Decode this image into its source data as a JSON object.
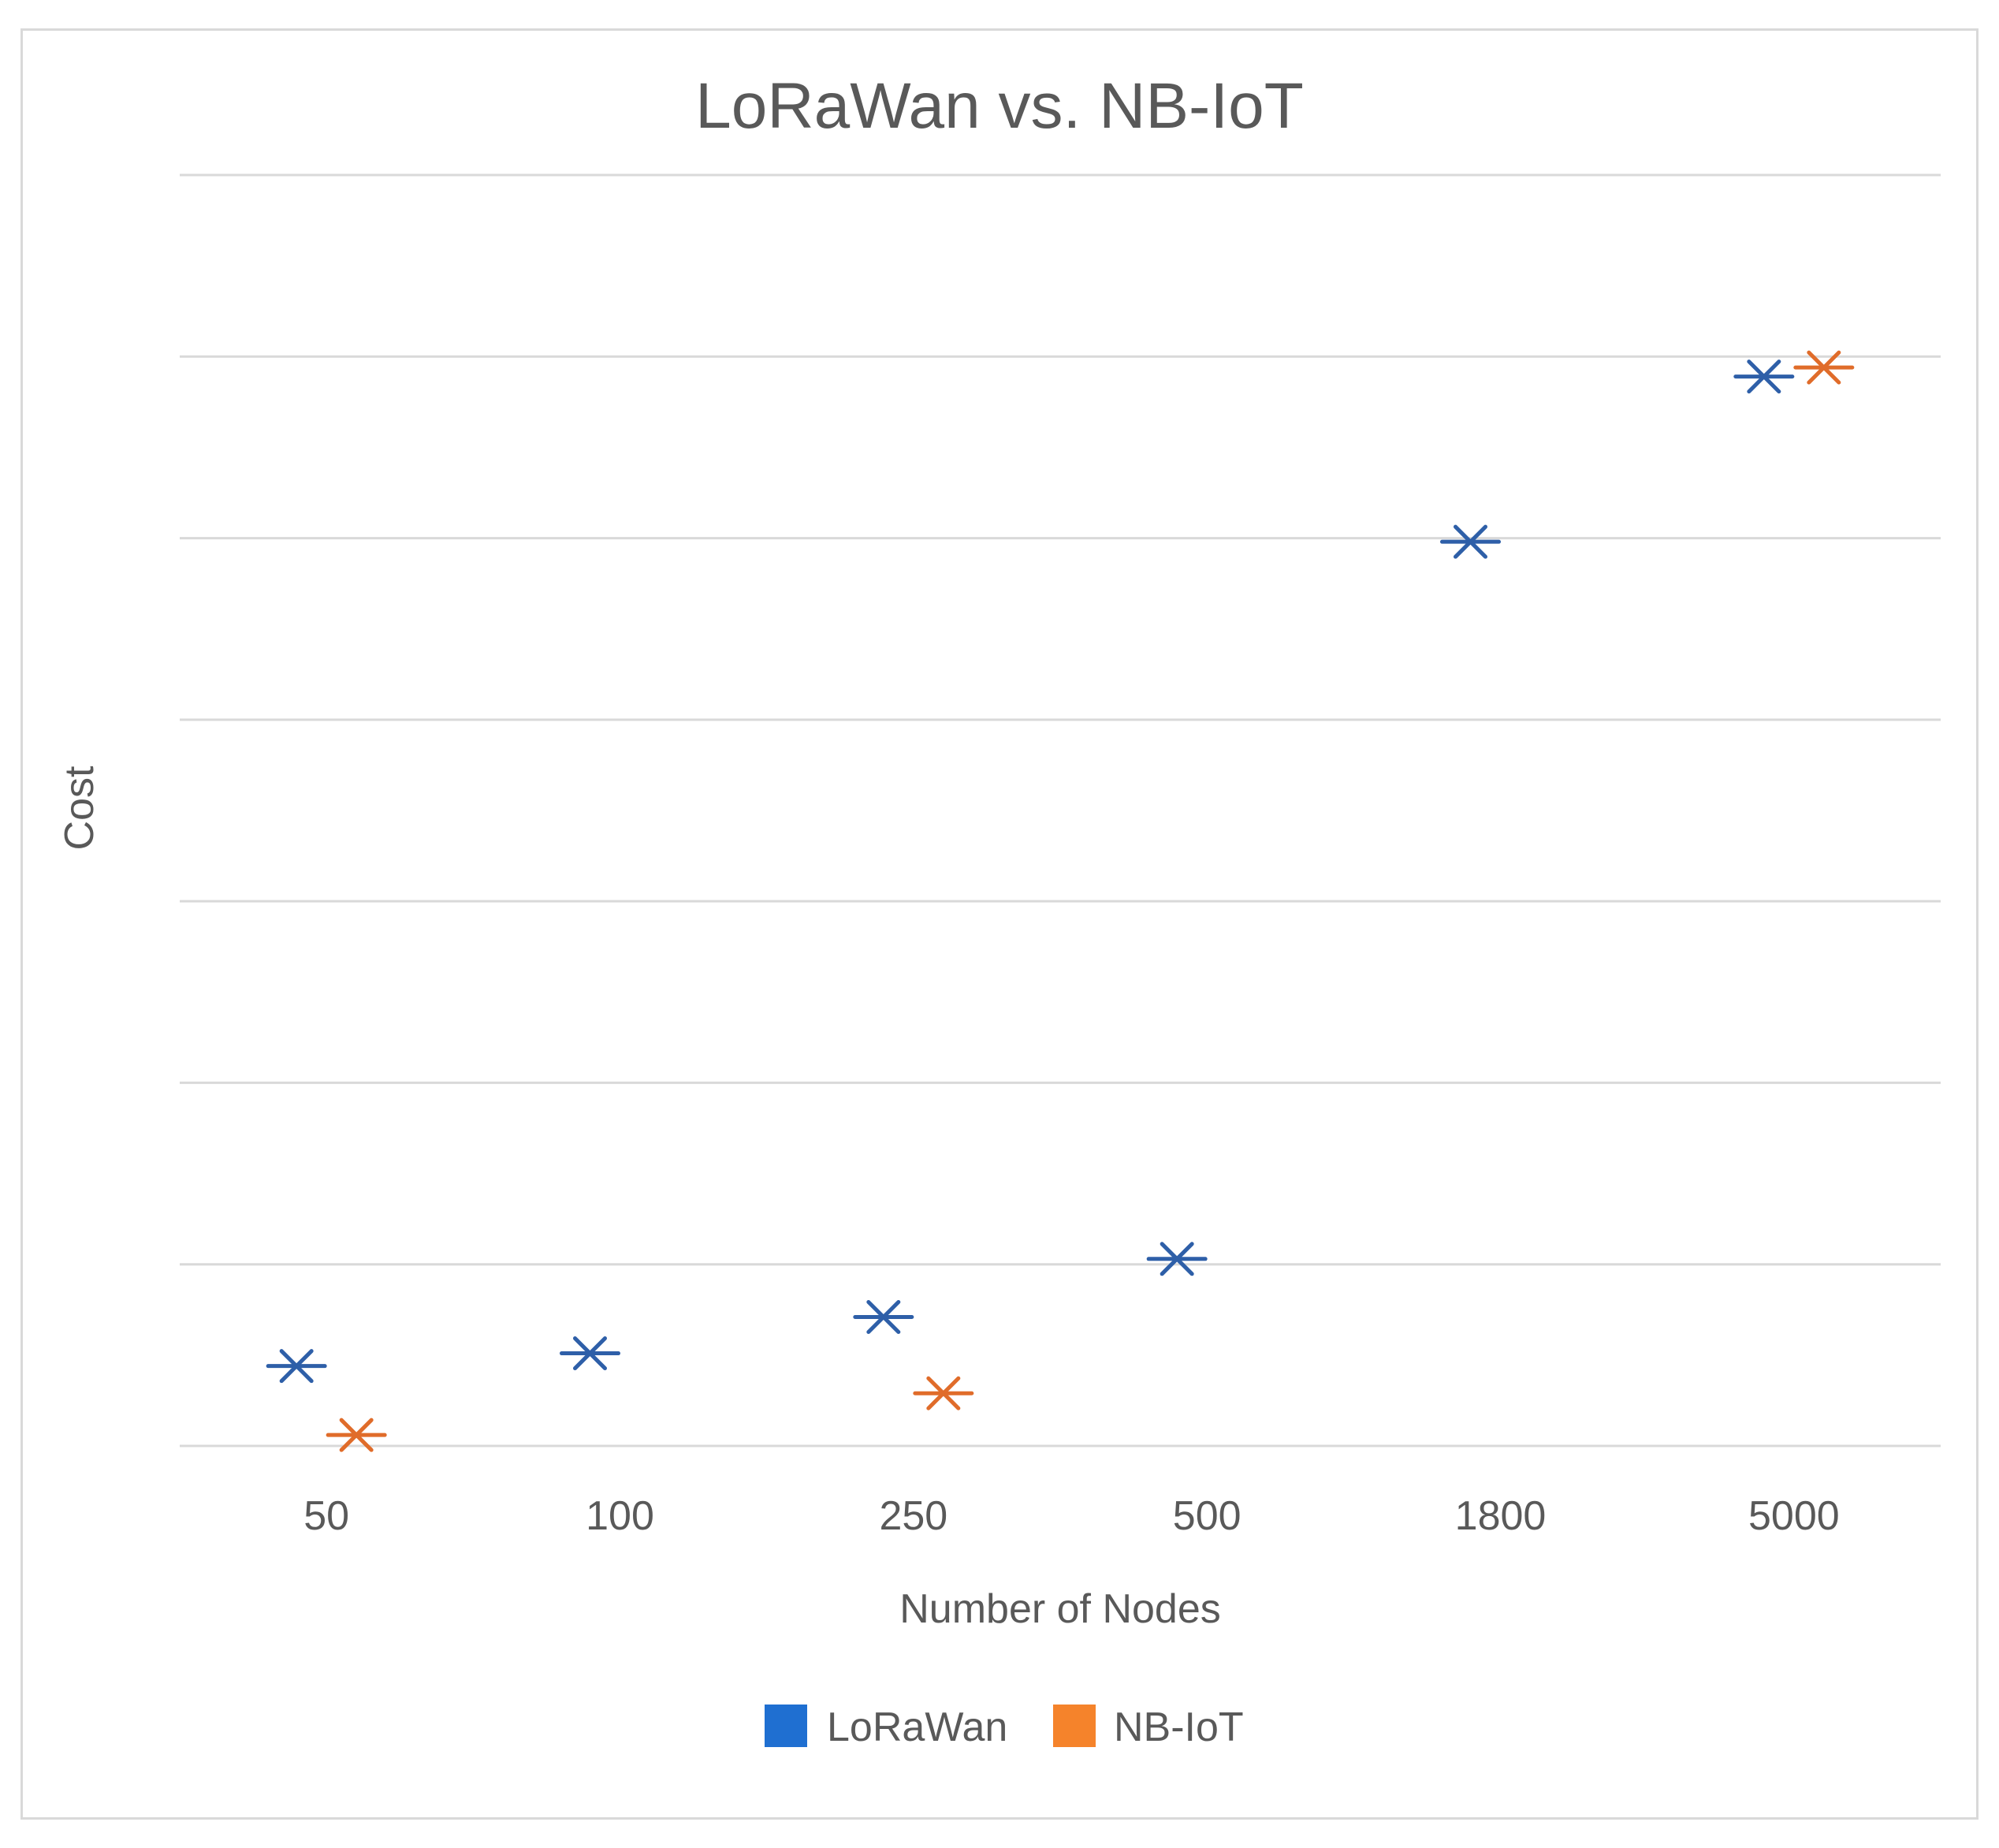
{
  "chart_data": {
    "type": "scatter",
    "title": "LoRaWan vs. NB-IoT",
    "xlabel": "Number of Nodes",
    "ylabel": "Cost",
    "categories": [
      "50",
      "100",
      "250",
      "500",
      "1800",
      "5000"
    ],
    "ylim": [
      0,
      7
    ],
    "gridlines": 7,
    "y_tick_labels_shown": false,
    "legend_position": "bottom",
    "marker": "star",
    "series": [
      {
        "name": "LoRaWan",
        "color": "#2e5fa8",
        "legend_color": "#1f6fd1",
        "values": [
          0.44,
          0.51,
          0.71,
          1.03,
          4.98,
          5.89
        ]
      },
      {
        "name": "NB-IoT",
        "color": "#e06c2a",
        "legend_color": "#f5832b",
        "values": [
          0.06,
          null,
          0.29,
          null,
          null,
          5.94
        ]
      }
    ]
  }
}
